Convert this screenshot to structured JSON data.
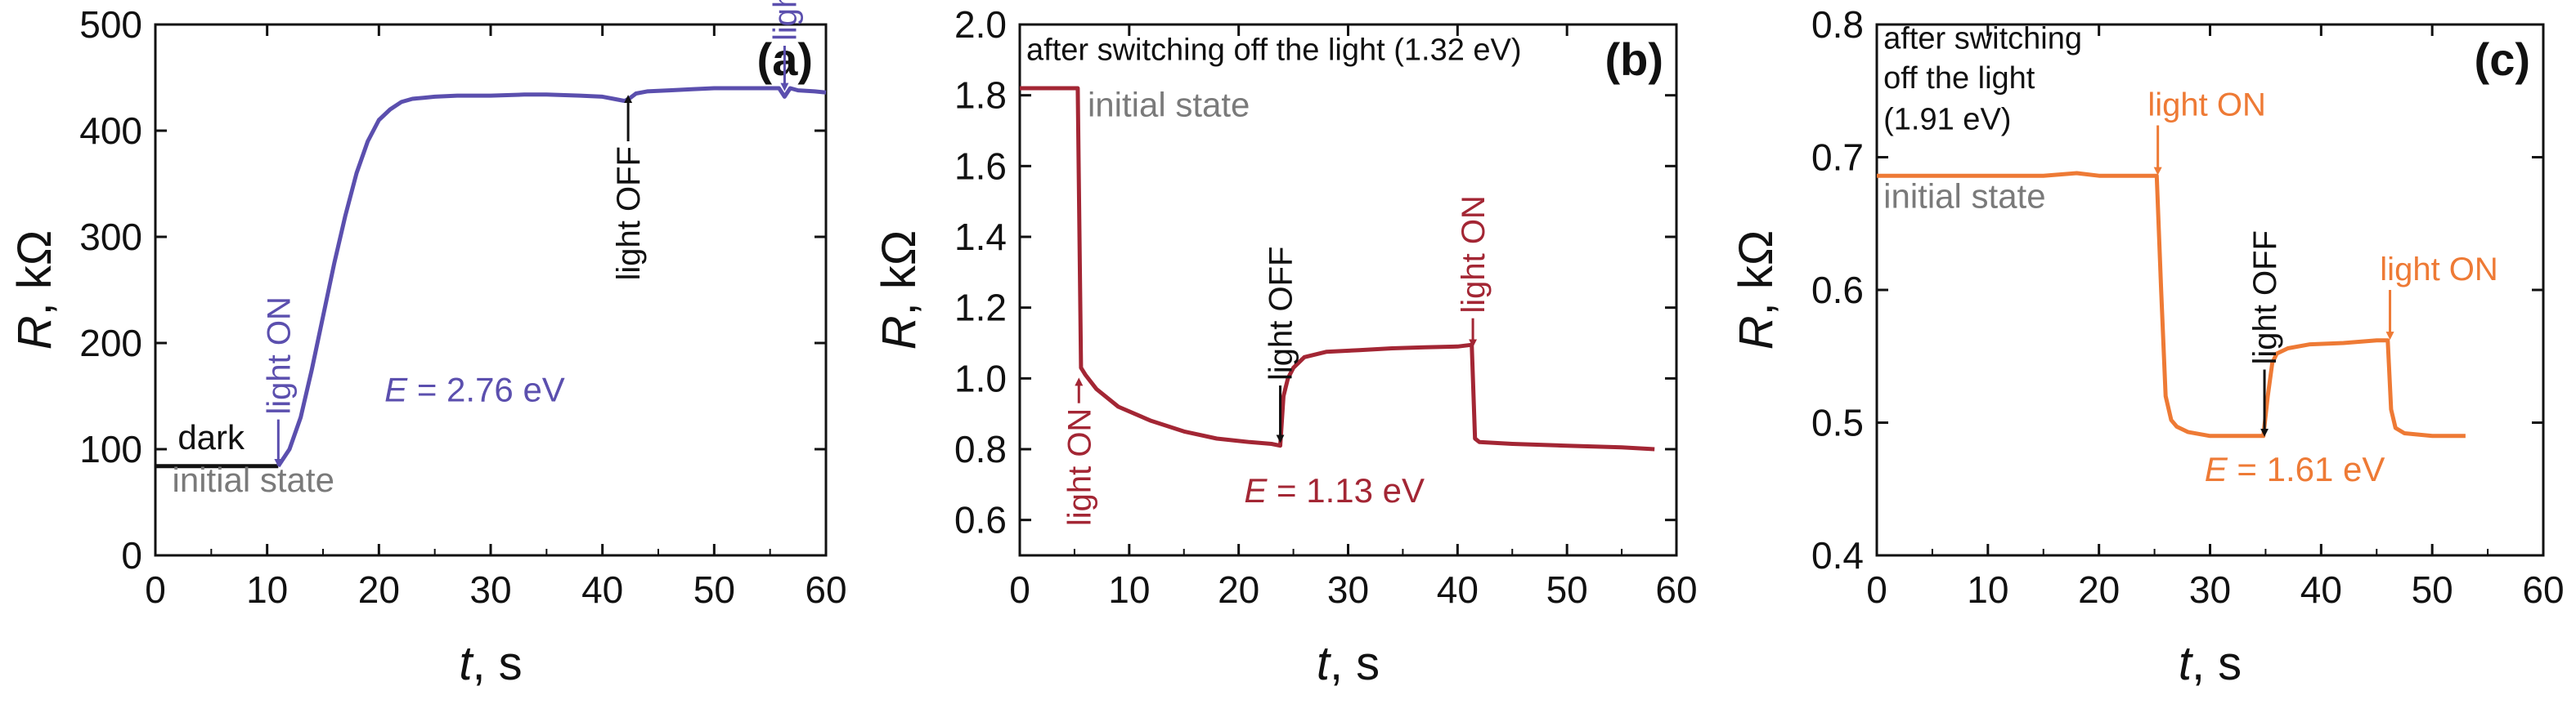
{
  "chart_data": [
    {
      "type": "line",
      "panel_label": "(a)",
      "xlabel_var": "t",
      "xlabel_unit": ", s",
      "ylabel_var": "R",
      "ylabel_unit": ", kΩ",
      "xlim": [
        0,
        60
      ],
      "ylim": [
        0,
        500
      ],
      "xticks": [
        "0",
        "10",
        "20",
        "30",
        "40",
        "50",
        "60"
      ],
      "yticks": [
        "0",
        "100",
        "200",
        "300",
        "400",
        "500"
      ],
      "grid": false,
      "colors": {
        "main": "#5b4fae",
        "dark": "#111111",
        "muted": "#7a7a7a"
      },
      "series": [
        {
          "style": "dark",
          "x": [
            0,
            3,
            6,
            9,
            11
          ],
          "y": [
            84,
            84,
            84,
            84,
            84
          ]
        },
        {
          "style": "main",
          "x": [
            11,
            12,
            13,
            14,
            15,
            16,
            17,
            18,
            19,
            20,
            21,
            22,
            23,
            24,
            25,
            27,
            30,
            33,
            35,
            38,
            40,
            41,
            42,
            42.5,
            43,
            44,
            46,
            48,
            50,
            52,
            54,
            55,
            55.8,
            56.3,
            56.8,
            57.5,
            59,
            60
          ],
          "y": [
            84,
            100,
            130,
            175,
            225,
            275,
            320,
            360,
            390,
            410,
            420,
            427,
            430,
            431,
            432,
            433,
            433,
            434,
            434,
            433,
            432,
            430,
            428,
            431,
            435,
            437,
            438,
            439,
            440,
            440,
            440,
            440,
            440,
            432,
            440,
            438,
            437,
            436
          ]
        }
      ],
      "annotations": [
        {
          "text": "dark",
          "x": 2,
          "y": 100,
          "style": "dark"
        },
        {
          "text": "initial state",
          "x": 1.5,
          "y": 60,
          "style": "muted"
        },
        {
          "text": "E = 2.76 eV",
          "x": 20.5,
          "y": 145,
          "style": "main",
          "italic_prefix": "E",
          "rest": " = 2.76 eV"
        }
      ],
      "markers": [
        {
          "text": "light ON",
          "x": 11,
          "y_tip": 84,
          "y_tail": 128,
          "dir": "down",
          "style": "main"
        },
        {
          "text": "light OFF",
          "x": 42.3,
          "y_tip": 433,
          "y_tail": 390,
          "dir": "up",
          "style": "dark"
        },
        {
          "text": "light ON",
          "x": 56.3,
          "y_tip": 438,
          "y_tail": 480,
          "dir": "down",
          "style": "main"
        }
      ]
    },
    {
      "type": "line",
      "panel_label": "(b)",
      "xlabel_var": "t",
      "xlabel_unit": ", s",
      "ylabel_var": "R",
      "ylabel_unit": ", kΩ",
      "xlim": [
        0,
        60
      ],
      "ylim": [
        0.5,
        2.0
      ],
      "xticks": [
        "0",
        "10",
        "20",
        "30",
        "40",
        "50",
        "60"
      ],
      "yticks": [
        "0.6",
        "0.8",
        "1.0",
        "1.2",
        "1.4",
        "1.6",
        "1.8",
        "2.0"
      ],
      "grid": false,
      "colors": {
        "main": "#a32634",
        "dark": "#111111",
        "muted": "#7a7a7a"
      },
      "series": [
        {
          "style": "main",
          "x": [
            0,
            2,
            4,
            5.3,
            5.6,
            6,
            7,
            9,
            12,
            15,
            18,
            21,
            23,
            23.8,
            24.1,
            24.5,
            25,
            26,
            28,
            31,
            34,
            37,
            40,
            41.3,
            41.6,
            42,
            45,
            50,
            55,
            58
          ],
          "y": [
            1.82,
            1.82,
            1.82,
            1.82,
            1.03,
            1.01,
            0.97,
            0.92,
            0.88,
            0.85,
            0.83,
            0.82,
            0.815,
            0.81,
            0.95,
            1.0,
            1.03,
            1.06,
            1.075,
            1.08,
            1.085,
            1.088,
            1.09,
            1.095,
            0.83,
            0.82,
            0.815,
            0.81,
            0.805,
            0.8
          ]
        }
      ],
      "annotations": [
        {
          "text": "after switching off the light (1.32 eV)",
          "x": 0.6,
          "y": 1.9,
          "style": "dark",
          "small": true
        },
        {
          "text": "initial state",
          "x": 6.2,
          "y": 1.74,
          "style": "muted"
        },
        {
          "text": "E = 1.13 eV",
          "x": 20.5,
          "y": 0.65,
          "style": "main",
          "italic_prefix": "E",
          "rest": " = 1.13 eV"
        }
      ],
      "markers": [
        {
          "text": "light ON",
          "x": 5.4,
          "y_tip": 1.0,
          "y_tail": 0.93,
          "dir": "up",
          "style": "main"
        },
        {
          "text": "light OFF",
          "x": 23.8,
          "y_tip": 0.82,
          "y_tail": 0.98,
          "dir": "down",
          "style": "dark"
        },
        {
          "text": "light ON",
          "x": 41.4,
          "y_tip": 1.09,
          "y_tail": 1.17,
          "dir": "down",
          "style": "main"
        }
      ]
    },
    {
      "type": "line",
      "panel_label": "(c)",
      "xlabel_var": "t",
      "xlabel_unit": ", s",
      "ylabel_var": "R",
      "ylabel_unit": ", kΩ",
      "xlim": [
        0,
        60
      ],
      "ylim": [
        0.4,
        0.8
      ],
      "xticks": [
        "0",
        "10",
        "20",
        "30",
        "40",
        "50",
        "60"
      ],
      "yticks": [
        "0.4",
        "0.5",
        "0.6",
        "0.7",
        "0.8"
      ],
      "grid": false,
      "colors": {
        "main": "#ee7a35",
        "dark": "#111111",
        "muted": "#7a7a7a"
      },
      "series": [
        {
          "style": "main",
          "x": [
            0,
            5,
            10,
            15,
            18,
            20,
            24,
            25.2,
            25.6,
            26,
            26.5,
            27,
            28,
            30,
            32,
            34,
            34.8,
            35.2,
            35.6,
            36,
            37,
            39,
            42,
            45,
            46,
            46.3,
            46.7,
            47.5,
            50,
            53
          ],
          "y": [
            0.686,
            0.686,
            0.686,
            0.686,
            0.688,
            0.686,
            0.686,
            0.686,
            0.6,
            0.52,
            0.502,
            0.497,
            0.493,
            0.49,
            0.49,
            0.49,
            0.49,
            0.52,
            0.545,
            0.552,
            0.556,
            0.559,
            0.56,
            0.562,
            0.562,
            0.51,
            0.496,
            0.492,
            0.49,
            0.49
          ]
        }
      ],
      "annotations": [
        {
          "text": "after switching",
          "x": 0.6,
          "y": 0.782,
          "style": "dark",
          "small": true
        },
        {
          "text": "off the light",
          "x": 0.6,
          "y": 0.752,
          "style": "dark",
          "small": true
        },
        {
          "text": "(1.91 eV)",
          "x": 0.6,
          "y": 0.721,
          "style": "dark",
          "small": true
        },
        {
          "text": "initial state",
          "x": 0.6,
          "y": 0.662,
          "style": "muted"
        },
        {
          "text": "E = 1.61 eV",
          "x": 29.5,
          "y": 0.456,
          "style": "main",
          "italic_prefix": "E",
          "rest": " = 1.61 eV"
        }
      ],
      "markers": [
        {
          "text": "light ON",
          "x": 25.3,
          "y_tip": 0.687,
          "y_tail": 0.724,
          "dir": "down",
          "style": "main",
          "label_pos": "above"
        },
        {
          "text": "light OFF",
          "x": 34.9,
          "y_tip": 0.49,
          "y_tail": 0.54,
          "dir": "down",
          "style": "dark"
        },
        {
          "text": "light ON",
          "x": 46.2,
          "y_tip": 0.563,
          "y_tail": 0.6,
          "dir": "down",
          "style": "main",
          "label_pos": "above"
        }
      ]
    }
  ]
}
